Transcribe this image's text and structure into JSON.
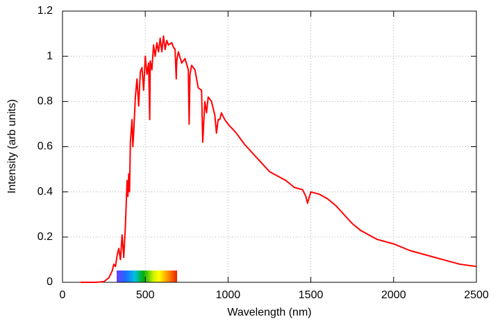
{
  "chart_data": {
    "type": "line",
    "x_label": "Wavelength (nm)",
    "y_label": "Intensity (arb units)",
    "x": [
      110,
      200,
      250,
      280,
      300,
      310,
      320,
      330,
      340,
      350,
      360,
      370,
      380,
      385,
      390,
      395,
      400,
      405,
      410,
      420,
      425,
      430,
      440,
      450,
      460,
      470,
      480,
      490,
      500,
      510,
      520,
      527,
      530,
      540,
      550,
      560,
      570,
      580,
      590,
      600,
      610,
      620,
      630,
      640,
      660,
      670,
      680,
      687,
      690,
      700,
      720,
      740,
      760,
      765,
      770,
      780,
      800,
      820,
      840,
      847,
      860,
      870,
      880,
      900,
      920,
      930,
      940,
      950,
      960,
      980,
      1000,
      1050,
      1100,
      1150,
      1200,
      1250,
      1300,
      1350,
      1400,
      1450,
      1470,
      1480,
      1500,
      1550,
      1600,
      1650,
      1700,
      1750,
      1800,
      1850,
      1900,
      1950,
      2000,
      2100,
      2200,
      2300,
      2400,
      2500
    ],
    "values": [
      0,
      0,
      0.003,
      0.02,
      0.05,
      0.08,
      0.07,
      0.12,
      0.15,
      0.1,
      0.21,
      0.11,
      0.25,
      0.35,
      0.45,
      0.38,
      0.48,
      0.4,
      0.62,
      0.72,
      0.6,
      0.66,
      0.82,
      0.9,
      0.78,
      0.93,
      0.95,
      0.85,
      1.0,
      0.92,
      0.97,
      0.72,
      0.98,
      0.94,
      1.05,
      1.0,
      1.06,
      1.02,
      1.08,
      1.02,
      1.09,
      1.03,
      1.07,
      1.05,
      1.06,
      1.04,
      1.03,
      0.9,
      0.98,
      1.02,
      0.97,
      0.99,
      0.94,
      0.7,
      0.92,
      0.96,
      0.94,
      0.86,
      0.85,
      0.62,
      0.8,
      0.75,
      0.82,
      0.8,
      0.74,
      0.66,
      0.72,
      0.72,
      0.75,
      0.72,
      0.7,
      0.66,
      0.61,
      0.57,
      0.53,
      0.49,
      0.47,
      0.45,
      0.42,
      0.41,
      0.38,
      0.35,
      0.4,
      0.39,
      0.37,
      0.34,
      0.3,
      0.26,
      0.23,
      0.21,
      0.19,
      0.18,
      0.17,
      0.14,
      0.12,
      0.1,
      0.08,
      0.07
    ],
    "color": "#ff0000",
    "xlim": [
      0,
      2500
    ],
    "xticks": [
      0,
      500,
      1000,
      1500,
      2000,
      2500
    ],
    "ylim": [
      0,
      1.2
    ],
    "yticks": [
      0,
      0.2,
      0.4,
      0.6,
      0.8,
      1,
      1.2
    ],
    "grid": true
  }
}
